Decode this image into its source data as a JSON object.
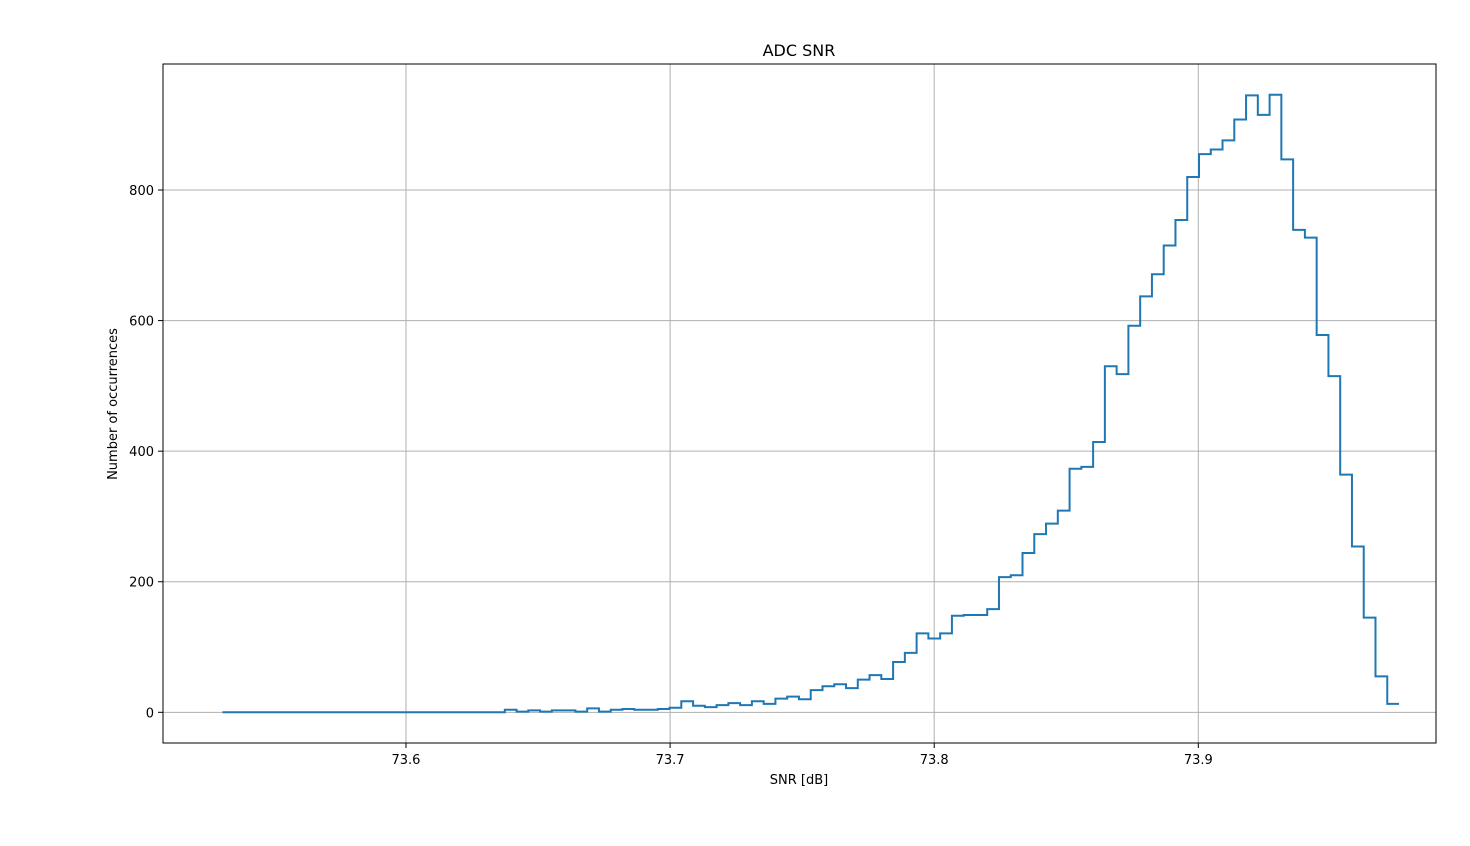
{
  "chart_data": {
    "type": "histogram",
    "title": "ADC SNR",
    "xlabel": "SNR [dB]",
    "ylabel": "Number of occurrences",
    "xlim": [
      73.508,
      73.99
    ],
    "ylim": [
      -47,
      993
    ],
    "xticks": [
      73.6,
      73.7,
      73.8,
      73.9
    ],
    "xtick_labels": [
      "73.6",
      "73.7",
      "73.8",
      "73.9"
    ],
    "yticks": [
      0,
      200,
      400,
      600,
      800
    ],
    "ytick_labels": [
      "0",
      "200",
      "400",
      "600",
      "800"
    ],
    "grid": true,
    "series": [
      {
        "color": "#1f77b4",
        "bin_start": 73.5305,
        "bin_width": 0.004455,
        "values": [
          0,
          0,
          0,
          0,
          0,
          0,
          0,
          0,
          0,
          0,
          0,
          0,
          0,
          0,
          0,
          0,
          0,
          0,
          0,
          0,
          0,
          0,
          0,
          0,
          4,
          1,
          3,
          1,
          3,
          3,
          1,
          6,
          1,
          4,
          5,
          4,
          4,
          5,
          7,
          17,
          10,
          8,
          11,
          14,
          11,
          17,
          13,
          21,
          24,
          20,
          34,
          40,
          43,
          37,
          50,
          57,
          51,
          77,
          91,
          121,
          113,
          121,
          148,
          149,
          149,
          158,
          207,
          210,
          244,
          273,
          289,
          309,
          373,
          376,
          414,
          530,
          518,
          592,
          637,
          671,
          715,
          754,
          820,
          855,
          862,
          876,
          908,
          945,
          915,
          946,
          847,
          739,
          727,
          578,
          515,
          364,
          254,
          145,
          55,
          13
        ]
      }
    ]
  }
}
